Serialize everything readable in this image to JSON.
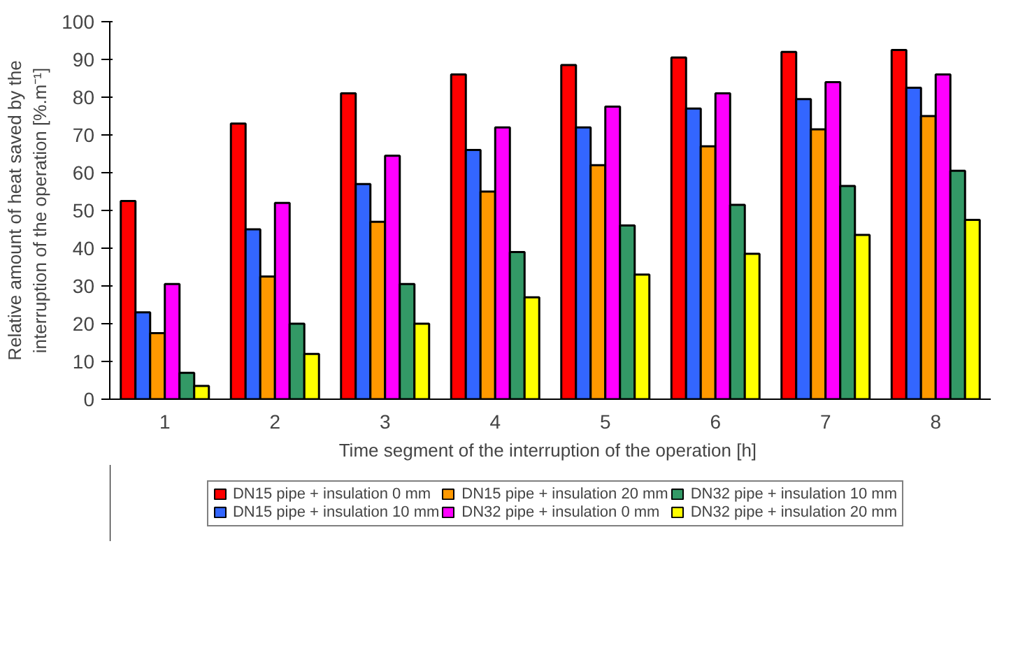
{
  "chart_data": {
    "type": "bar",
    "xlabel": "Time segment of the interruption of  the operation [h]",
    "ylabel": "Relative amount of heat saved by the interruption of the operation [%.m⁻¹]",
    "categories": [
      "1",
      "2",
      "3",
      "4",
      "5",
      "6",
      "7",
      "8"
    ],
    "ylim": [
      0,
      100
    ],
    "yticks": [
      0,
      10,
      20,
      30,
      40,
      50,
      60,
      70,
      80,
      90,
      100
    ],
    "grid": false,
    "legend": "bottom",
    "series": [
      {
        "name": "DN15 pipe + insulation 0 mm",
        "color": "#ff0000",
        "values": [
          52.5,
          73,
          81,
          86,
          88.5,
          90.5,
          92,
          92.5
        ]
      },
      {
        "name": "DN15 pipe + insulation 10 mm",
        "color": "#3366ff",
        "values": [
          23,
          45,
          57,
          66,
          72,
          77,
          79.5,
          82.5
        ]
      },
      {
        "name": "DN15 pipe + insulation 20 mm",
        "color": "#ff9900",
        "values": [
          17.5,
          32.5,
          47,
          55,
          62,
          67,
          71.5,
          75
        ]
      },
      {
        "name": "DN32 pipe + insulation 0 mm",
        "color": "#ff00ff",
        "values": [
          30.5,
          52,
          64.5,
          72,
          77.5,
          81,
          84,
          86
        ]
      },
      {
        "name": "DN32 pipe + insulation 10 mm",
        "color": "#339966",
        "values": [
          7,
          20,
          30.5,
          39,
          46,
          51.5,
          56.5,
          60.5
        ]
      },
      {
        "name": "DN32 pipe + insulation 20 mm",
        "color": "#ffff00",
        "values": [
          3.5,
          12,
          20,
          27,
          33,
          38.5,
          43.5,
          47.5
        ]
      }
    ]
  }
}
